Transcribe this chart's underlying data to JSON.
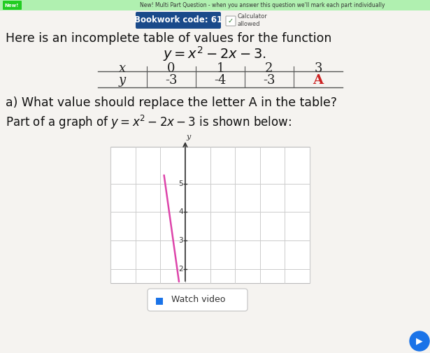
{
  "bg_color": "#e8e6e3",
  "top_banner_bg": "#b0f0b0",
  "top_banner_text": "New! Multi Part Question - when you answer this question we'll mark each part individually",
  "top_new_badge_color": "#22cc22",
  "bookwork_label": "Bookwork code: 61",
  "bookwork_bg": "#1a4a8a",
  "calculator_text": "Calculator\nallowed",
  "main_text_line1": "Here is an incomplete table of values for the function",
  "equation_latex": "$y = x^2 - 2x - 3.$",
  "table_x_vals": [
    "x",
    "0",
    "1",
    "2",
    "3"
  ],
  "table_y_vals": [
    "y",
    "-3",
    "-4",
    "-3",
    "A"
  ],
  "question_a": "a) What value should replace the letter A in the table?",
  "graph_label": "Part of a graph of $y = x^2 - 2x - 3$ is shown below:",
  "graph_ylabel": "y",
  "graph_yticks": [
    2,
    3,
    4,
    5
  ],
  "graph_line_color": "#dd44aa",
  "watch_video_text": "Watch video",
  "watch_video_icon_color": "#1a73e8",
  "content_bg": "#f5f3f0",
  "right_arrow_color": "#1a73e8"
}
